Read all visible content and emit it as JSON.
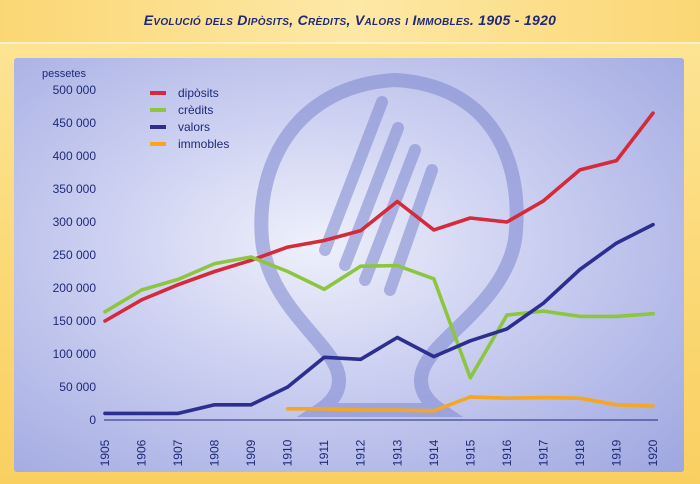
{
  "chart_data": {
    "type": "line",
    "title": "Evolució dels Dipòsits, Crèdits, Valors i Immobles. 1905 - 1920",
    "ylabel": "pessetes",
    "ylim": [
      0,
      500000
    ],
    "yticks": [
      0,
      50000,
      100000,
      150000,
      200000,
      250000,
      300000,
      350000,
      400000,
      450000,
      500000
    ],
    "ytick_labels": [
      "0",
      "50 000",
      "100 000",
      "150 000",
      "200 000",
      "250 000",
      "300 000",
      "350 000",
      "400 000",
      "450 000",
      "500 000"
    ],
    "x": [
      "1905",
      "1906",
      "1907",
      "1908",
      "1909",
      "1910",
      "1911",
      "1912",
      "1913",
      "1914",
      "1915",
      "1916",
      "1917",
      "1918",
      "1919",
      "1920"
    ],
    "legend_position": "top-left",
    "grid": false,
    "series": [
      {
        "name": "dipòsits",
        "color": "#d42a3c",
        "values": [
          150000,
          182000,
          205000,
          225000,
          242000,
          262000,
          272000,
          287000,
          331000,
          288000,
          306000,
          300000,
          332000,
          379000,
          393000,
          465000
        ]
      },
      {
        "name": "crèdits",
        "color": "#8cc63f",
        "values": [
          164000,
          197000,
          213000,
          237000,
          247000,
          225000,
          198000,
          233000,
          234000,
          214000,
          64000,
          159000,
          165000,
          157000,
          157000,
          161000
        ]
      },
      {
        "name": "valors",
        "color": "#2c2f8f",
        "values": [
          10000,
          10000,
          10000,
          23000,
          23000,
          50000,
          95000,
          92000,
          125000,
          96000,
          120000,
          138000,
          177000,
          228000,
          268000,
          296000
        ]
      },
      {
        "name": "immobles",
        "color": "#f5a623",
        "values": [
          null,
          null,
          null,
          null,
          null,
          17000,
          17000,
          15000,
          15000,
          14000,
          35000,
          33000,
          34000,
          33000,
          23000,
          21000
        ]
      }
    ]
  }
}
